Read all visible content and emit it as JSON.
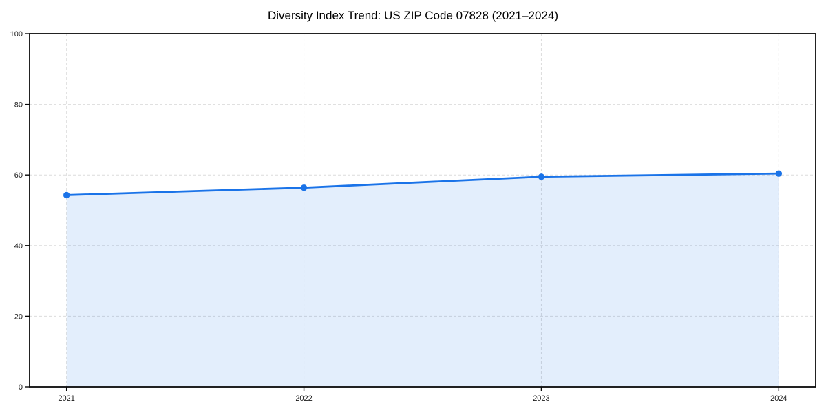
{
  "chart_data": {
    "type": "area",
    "title": "Diversity Index Trend: US ZIP Code 07828 (2021–2024)",
    "categories": [
      "2021",
      "2022",
      "2023",
      "2024"
    ],
    "series": [
      {
        "name": "Diversity Index",
        "values": [
          54.3,
          56.4,
          59.5,
          60.4
        ]
      }
    ],
    "xlabel": "",
    "ylabel": "",
    "ylim": [
      0,
      100
    ],
    "yticks": [
      0,
      20,
      40,
      60,
      80,
      100
    ],
    "grid": true,
    "grid_style": "dashed",
    "legend": false,
    "markers": true
  },
  "colors": {
    "line": "#1a73e8",
    "marker": "#1a73e8",
    "fill": "#1a73e8",
    "fill_opacity": "0.12",
    "grid": "#dcdcdc",
    "axis": "#0a0a0a",
    "tick_label": "#1a1a1a",
    "background": "#ffffff"
  }
}
